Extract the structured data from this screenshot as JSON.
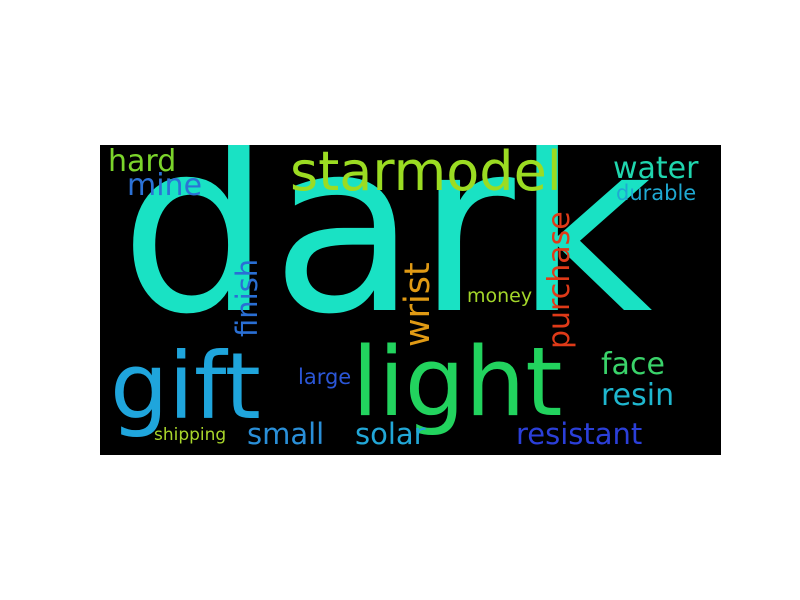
{
  "words": {
    "dark": {
      "text": "dark",
      "color": "#19e2c4"
    },
    "gift": {
      "text": "gift",
      "color": "#1fa5dc"
    },
    "light": {
      "text": "light",
      "color": "#22d35e"
    },
    "starmodel": {
      "text": "starmodel",
      "color": "#9bdc22"
    },
    "hard": {
      "text": "hard",
      "color": "#7bd42b"
    },
    "mine": {
      "text": "mine",
      "color": "#2c72d6"
    },
    "water": {
      "text": "water",
      "color": "#1fd6ae"
    },
    "durable": {
      "text": "durable",
      "color": "#1fa9d2"
    },
    "finish": {
      "text": "finish",
      "color": "#2a6fd4"
    },
    "wrist": {
      "text": "wrist",
      "color": "#e09a14"
    },
    "purchase": {
      "text": "purchase",
      "color": "#df3a18"
    },
    "money": {
      "text": "money",
      "color": "#a3d62a"
    },
    "face": {
      "text": "face",
      "color": "#3ad36a"
    },
    "resin": {
      "text": "resin",
      "color": "#1fb7cf"
    },
    "large": {
      "text": "large",
      "color": "#2b56d6"
    },
    "small": {
      "text": "small",
      "color": "#2a8fd8"
    },
    "solar": {
      "text": "solar",
      "color": "#22a7d7"
    },
    "resistant": {
      "text": "resistant",
      "color": "#2b3fd8"
    },
    "shipping": {
      "text": "shipping",
      "color": "#a9d62b"
    }
  }
}
